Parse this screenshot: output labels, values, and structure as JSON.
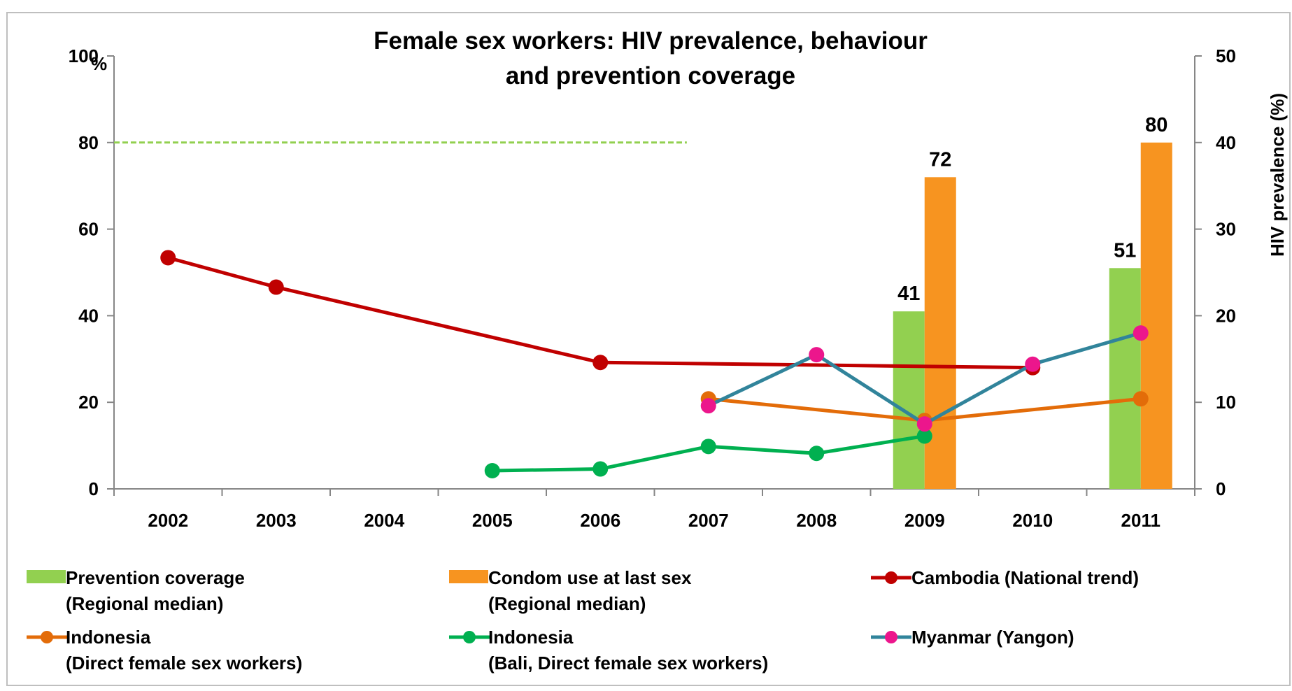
{
  "chart_data": {
    "type": "bar_line",
    "title": [
      "Female sex workers: HIV prevalence, behaviour",
      "and prevention coverage"
    ],
    "y_unit": "%",
    "y2_label": "HIV prevalence (%)",
    "x": [
      2002,
      2003,
      2004,
      2005,
      2006,
      2007,
      2008,
      2009,
      2010,
      2011
    ],
    "xlim": [
      2001.5,
      2011.5
    ],
    "ylim": [
      0,
      100
    ],
    "yticks": [
      0,
      20,
      40,
      60,
      80,
      100
    ],
    "y2lim": [
      0,
      50
    ],
    "y2ticks": [
      0,
      10,
      20,
      30,
      40,
      50
    ],
    "reference_line": {
      "value": 80,
      "x": [
        2001.5,
        2006.8
      ],
      "color": "#92d050"
    },
    "series": [
      {
        "name": [
          "Prevention coverage",
          "(Regional median)"
        ],
        "kind": "bar",
        "offset": -1,
        "color": "#92d050",
        "x": [
          2009,
          2011
        ],
        "values": [
          41,
          51
        ]
      },
      {
        "name": [
          "Condom use at last sex",
          "(Regional median)"
        ],
        "kind": "bar",
        "offset": 1,
        "color": "#f79420",
        "x": [
          2009,
          2011
        ],
        "values": [
          72,
          80
        ]
      },
      {
        "name": "Cambodia (National trend)",
        "kind": "line",
        "axis": "y2",
        "color": "#c00000",
        "marker_color": "#c00000",
        "x": [
          2002,
          2003,
          2006,
          2010
        ],
        "values": [
          26.7,
          23.3,
          14.6,
          14.0
        ]
      },
      {
        "name": [
          "Indonesia",
          "(Direct female sex workers)"
        ],
        "kind": "line",
        "axis": "y2",
        "color": "#e36c09",
        "marker_color": "#e36c09",
        "x": [
          2007,
          2009,
          2011
        ],
        "values": [
          10.4,
          7.9,
          10.4
        ]
      },
      {
        "name": [
          "Indonesia",
          "(Bali, Direct female sex workers)"
        ],
        "kind": "line",
        "axis": "y2",
        "color": "#00b050",
        "marker_color": "#00b050",
        "x": [
          2005,
          2006,
          2007,
          2008,
          2009
        ],
        "values": [
          2.1,
          2.3,
          4.9,
          4.1,
          6.1
        ]
      },
      {
        "name": "Myanmar (Yangon)",
        "kind": "line",
        "axis": "y2",
        "color": "#31849b",
        "marker_color": "#ec168c",
        "x": [
          2007,
          2008,
          2009,
          2010,
          2011
        ],
        "values": [
          9.6,
          15.5,
          7.5,
          14.4,
          18.0
        ]
      }
    ]
  }
}
